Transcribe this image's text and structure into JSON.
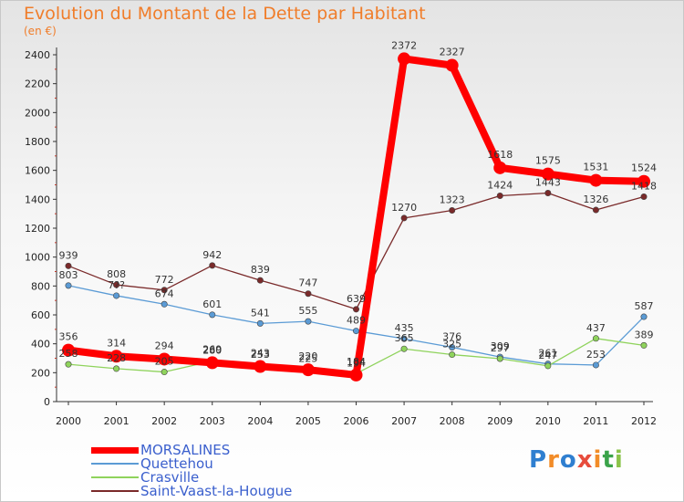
{
  "header": {
    "title": "Evolution du Montant de la Dette par Habitant",
    "subtitle": "(en €)"
  },
  "logo": {
    "text": "Proxiti",
    "letters": [
      {
        "ch": "P",
        "color": "#2f7fd0"
      },
      {
        "ch": "r",
        "color": "#f28c28"
      },
      {
        "ch": "o",
        "color": "#2f7fd0"
      },
      {
        "ch": "x",
        "color": "#e74c3c"
      },
      {
        "ch": "i",
        "color": "#f28c28"
      },
      {
        "ch": "t",
        "color": "#3aa34a"
      },
      {
        "ch": "i",
        "color": "#8bc34a"
      }
    ]
  },
  "chart_data": {
    "type": "line",
    "title": "Evolution du Montant de la Dette par Habitant",
    "subtitle": "(en €)",
    "xlabel": "",
    "ylabel": "",
    "x": [
      "2000",
      "2001",
      "2002",
      "2003",
      "2004",
      "2005",
      "2006",
      "2007",
      "2008",
      "2009",
      "2010",
      "2011",
      "2012"
    ],
    "ylim": [
      0,
      2400
    ],
    "yticks": [
      0,
      200,
      400,
      600,
      800,
      1000,
      1200,
      1400,
      1600,
      1800,
      2000,
      2200,
      2400
    ],
    "grid": false,
    "legend_position": "bottom-left",
    "series": [
      {
        "name": "MORSALINES",
        "color": "#ff0000",
        "emphasis": true,
        "values": [
          356,
          314,
          294,
          269,
          243,
          220,
          184,
          2372,
          2327,
          1618,
          1575,
          1531,
          1524
        ],
        "labels": [
          "356",
          "314",
          "294",
          "269",
          "243",
          "220",
          "184",
          "2372",
          "2327",
          "1618",
          "1575",
          "1531",
          "1524"
        ]
      },
      {
        "name": "Quettehou",
        "color": "#5b9bd5",
        "emphasis": false,
        "values": [
          803,
          733,
          674,
          601,
          541,
          555,
          489,
          435,
          376,
          309,
          261,
          253,
          587
        ],
        "labels": [
          "803",
          "7??",
          "674",
          "601",
          "541",
          "555",
          "489",
          "435",
          "376",
          "309",
          "261",
          "253",
          "587"
        ]
      },
      {
        "name": "Crasville",
        "color": "#8fd35c",
        "emphasis": false,
        "values": [
          258,
          228,
          205,
          280,
          253,
          225,
          194,
          365,
          325,
          297,
          247,
          437,
          389
        ],
        "labels": [
          "258",
          "228",
          "205",
          "280",
          "253",
          "225",
          "194",
          "365",
          "325",
          "297",
          "247",
          "437",
          "389"
        ]
      },
      {
        "name": "Saint-Vaast-la-Hougue",
        "color": "#7a2a2a",
        "emphasis": false,
        "values": [
          939,
          808,
          772,
          942,
          839,
          747,
          639,
          1270,
          1323,
          1424,
          1443,
          1326,
          1418
        ],
        "labels": [
          "939",
          "808",
          "772",
          "942",
          "839",
          "747",
          "639",
          "1270",
          "1323",
          "1424",
          "1443",
          "1326",
          "1418"
        ]
      }
    ]
  }
}
